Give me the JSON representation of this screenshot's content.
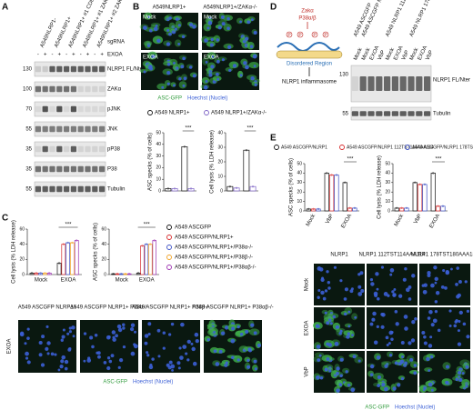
{
  "panels": {
    "a": {
      "label": "A",
      "lanes": [
        "A549NLRP1-",
        "A549NLRP1+",
        "A549NLRP1+ #1 CD8",
        "A549NLRP1+ #1 ZAK-α",
        "A549NLRP1+ #2 ZAK-α"
      ],
      "sgrna": "sgRNA",
      "treatment_label": "EXOA",
      "treatment": [
        "-",
        "+",
        "-",
        "+",
        "-",
        "+",
        "-",
        "+",
        "-",
        "+"
      ],
      "markers": [
        "130",
        "100",
        "70",
        "55",
        "35",
        "35",
        "55"
      ],
      "blots": [
        "NLRP1 FL/Nter",
        "ZAKα",
        "pJNK",
        "JNK",
        "pP38",
        "P38",
        "Tubulin"
      ]
    },
    "b": {
      "label": "B",
      "columns": [
        "A549NLRP1+",
        "A549NLRP1+/ZAKα-/-"
      ],
      "images": [
        "Mock",
        "Mock",
        "EXOA",
        "EXOA"
      ],
      "stain": [
        "ASC-GFP",
        "Hoechst (Nuclei)"
      ],
      "series": [
        {
          "name": "A549 NLRP1+",
          "color": "#111111"
        },
        {
          "name": "A549 NLRP1+/ZAKα-/-",
          "color": "#7a5fc4"
        }
      ],
      "charts": [
        {
          "ylabel": "ASC specks (% of cells)",
          "ylim": [
            0,
            50
          ],
          "yticks": [
            0,
            10,
            20,
            30,
            40,
            50
          ],
          "values": [
            [
              2,
              38
            ],
            [
              2,
              2
            ]
          ],
          "annotation": "***"
        },
        {
          "ylabel": "Cell lysis (% LDH release)",
          "ylim": [
            0,
            40
          ],
          "yticks": [
            0,
            10,
            20,
            30,
            40
          ],
          "values": [
            [
              3,
              28
            ],
            [
              2,
              3
            ]
          ],
          "annotation": "***"
        }
      ]
    },
    "c": {
      "label": "C",
      "series": [
        {
          "name": "A549 ASCGFP",
          "color": "#111111"
        },
        {
          "name": "A549 ASCGFP/NLRP1+",
          "color": "#d62728"
        },
        {
          "name": "A549 ASCGFP/NLRP1+/P38α-/-",
          "color": "#3a4fc4"
        },
        {
          "name": "A549 ASCGFP/NLRP1+/P38β-/-",
          "color": "#f0a020"
        },
        {
          "name": "A549 ASCGFP/NLRP1+/P38αβ-/-",
          "color": "#9b30b0"
        }
      ],
      "charts": [
        {
          "ylabel": "Cell lysis (% LDH release)",
          "ylim": [
            0,
            60
          ],
          "yticks": [
            0,
            20,
            40,
            60
          ],
          "categories": [
            "Mock",
            "EXOA"
          ],
          "values": [
            [
              2,
              15
            ],
            [
              2,
              40
            ],
            [
              2,
              42
            ],
            [
              2,
              42
            ],
            [
              2,
              45
            ]
          ],
          "annotation": "***"
        },
        {
          "ylabel": "ASC specks (% of cells)",
          "ylim": [
            0,
            60
          ],
          "yticks": [
            0,
            20,
            40,
            60
          ],
          "categories": [
            "Mock",
            "EXOA"
          ],
          "values": [
            [
              1,
              2
            ],
            [
              1,
              38
            ],
            [
              1,
              40
            ],
            [
              1,
              40
            ],
            [
              1,
              45
            ]
          ],
          "annotation": "***"
        }
      ],
      "image_columns": [
        "A549 ASCGFP NLRP1+",
        "A549 ASCGFP NLRP1+ P38α-/-",
        "A549 ASCGFP NLRP1+ P38β-/-",
        "A549 ASCGFP NLRP1+ P38αβ-/-"
      ],
      "image_row": "EXOA",
      "stain": [
        "ASC-GFP",
        "Hoechst (Nuclei)"
      ]
    },
    "d": {
      "label": "D",
      "diagram": {
        "kinase": "Zakα",
        "p38": "P38α/β",
        "phospho": "P",
        "region": "Disordered Region",
        "output": "NLRP1 inflammasome"
      },
      "lanes": [
        "A549 ASCGFP",
        "A549 ASCGFP NLRP1",
        "A549 NLRP1 112TST114AAA114",
        "A549 NLRP1 178TST180AAA180"
      ],
      "treatment": [
        "Mock",
        "Mock",
        "EXOA",
        "VbP",
        "Mock",
        "EXOA",
        "VbP",
        "Mock",
        "EXOA",
        "VbP"
      ],
      "markers": [
        "130",
        "55"
      ],
      "blots": [
        "NLRP1 FL/Nter",
        "Tubulin"
      ]
    },
    "e": {
      "label": "E",
      "series": [
        {
          "name": "A549 ASCGFP/NLRP1",
          "color": "#111111"
        },
        {
          "name": "A549 ASCGFP/NLRP1 112TST114AAA114",
          "color": "#d62728"
        },
        {
          "name": "A549 ASCGFP/NLRP1 178TST180AAA180",
          "color": "#3a4fc4"
        }
      ],
      "charts": [
        {
          "ylabel": "ASC specks (% of cells)",
          "ylim": [
            0,
            50
          ],
          "yticks": [
            0,
            10,
            20,
            30,
            40,
            50
          ],
          "categories": [
            "Mock",
            "VbP",
            "EXOA"
          ],
          "values": [
            [
              2,
              40,
              30
            ],
            [
              2,
              38,
              3
            ],
            [
              2,
              38,
              3
            ]
          ],
          "annotation": "***"
        },
        {
          "ylabel": "Cell lysis (% LDH release)",
          "ylim": [
            0,
            50
          ],
          "yticks": [
            0,
            10,
            20,
            30,
            40,
            50
          ],
          "categories": [
            "Mock",
            "VbP",
            "EXOA"
          ],
          "values": [
            [
              3,
              30,
              40
            ],
            [
              3,
              28,
              5
            ],
            [
              3,
              28,
              5
            ]
          ],
          "annotation": "***"
        }
      ],
      "image_columns": [
        "NLRP1",
        "NLRP1 112TST114AAA114",
        "NLRP1 178TST180AAA180"
      ],
      "image_rows": [
        "Mock",
        "EXOA",
        "VbP"
      ],
      "stain": [
        "ASC-GFP",
        "Hoechst (Nuclei)"
      ]
    }
  }
}
